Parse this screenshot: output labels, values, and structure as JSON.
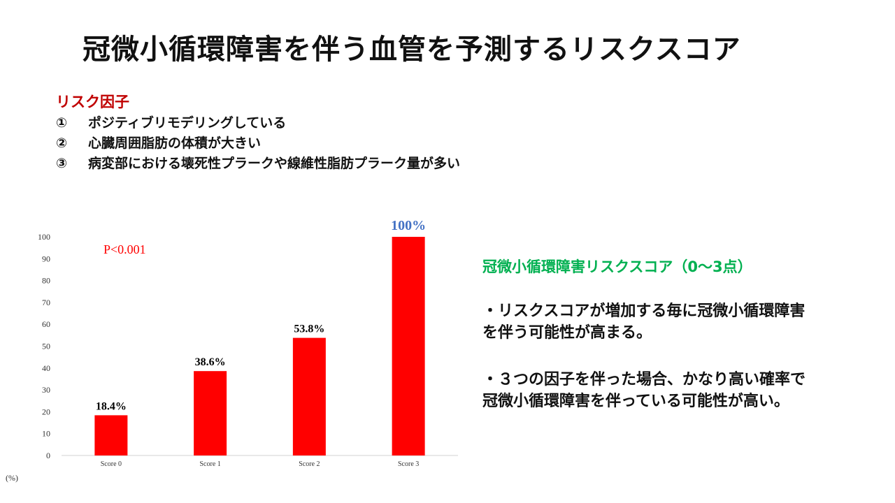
{
  "title": "冠微小循環障害を伴う血管を予測するリスクスコア",
  "risk_factors": {
    "heading": "リスク因子",
    "items": [
      {
        "num": "①",
        "text": "ポジティブリモデリングしている"
      },
      {
        "num": "②",
        "text": "心臓周囲脂肪の体積が大きい"
      },
      {
        "num": "③",
        "text": "病変部における壊死性プラークや線維性脂肪プラーク量が多い"
      }
    ]
  },
  "risk_score": {
    "title": "冠微小循環障害リスクスコア（0～3点）",
    "point1_line1": "・リスクスコアが増加する毎に冠微小循環障害",
    "point1_line2": "を伴う可能性が高まる。",
    "point2_line1": "・３つの因子を伴った場合、かなり高い確率で",
    "point2_line2": "冠微小循環障害を伴っている可能性が高い。"
  },
  "chart_data": {
    "type": "bar",
    "categories": [
      "Score 0",
      "Score 1",
      "Score 2",
      "Score 3"
    ],
    "values": [
      18.4,
      38.6,
      53.8,
      100
    ],
    "data_labels": [
      "18.4%",
      "38.6%",
      "53.8%",
      "100%"
    ],
    "annotation": "P<0.001",
    "ylabel": "(%)",
    "ylim": [
      0,
      100
    ],
    "yticks": [
      0,
      10,
      20,
      30,
      40,
      50,
      60,
      70,
      80,
      90,
      100
    ],
    "grid": false,
    "colors": {
      "bar": "#ff0000",
      "annotation": "#ff0000",
      "highlight_label": "#4472c4",
      "label": "#000000"
    }
  }
}
